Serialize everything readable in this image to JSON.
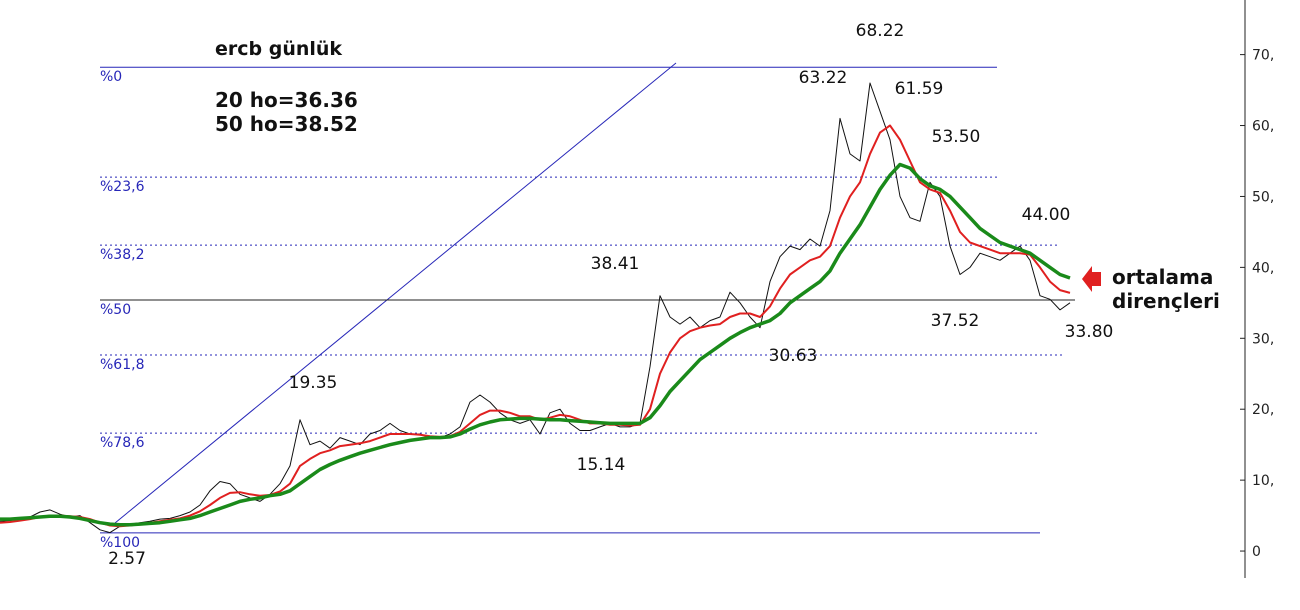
{
  "chart_data": {
    "type": "line",
    "title": "ercb günlük",
    "text_lines": [
      "20 ho=36.36",
      "50 ho=38.52"
    ],
    "note_lines": [
      "ortalama",
      "dirençleri"
    ],
    "ylim": [
      -3.8,
      77.7
    ],
    "yticks": [
      0,
      {
        "value": 10,
        "label": "10,"
      },
      {
        "value": 20,
        "label": "20,"
      },
      {
        "value": 30,
        "label": "30,"
      },
      {
        "value": 40,
        "label": "40,"
      },
      {
        "value": 50,
        "label": "50,"
      },
      {
        "value": 60,
        "label": "60,"
      },
      {
        "value": 70,
        "label": "70,"
      }
    ],
    "fib_levels": [
      {
        "label": "%0",
        "value": 68.22,
        "dashed": false,
        "color": "#2727b8"
      },
      {
        "label": "%23,6",
        "value": 52.73,
        "dashed": true,
        "color": "#2727b8"
      },
      {
        "label": "%38,2",
        "value": 43.14,
        "dashed": true,
        "color": "#2727b8"
      },
      {
        "label": "%50",
        "value": 35.4,
        "dashed": false,
        "color": "#2727b8"
      },
      {
        "label": "%61,8",
        "value": 27.65,
        "dashed": true,
        "color": "#2727b8"
      },
      {
        "label": "%78,6",
        "value": 16.62,
        "dashed": true,
        "color": "#2727b8"
      },
      {
        "label": "%100",
        "value": 2.57,
        "dashed": false,
        "color": "#2727b8"
      }
    ],
    "annotations": [
      "68.22",
      "63.22",
      "61.59",
      "53.50",
      "44.00",
      "38.41",
      "37.52",
      "33.80",
      "30.63",
      "19.35",
      "15.14",
      "2.57"
    ],
    "series": [
      {
        "color": "#111111",
        "width": 1,
        "values": [
          4.2,
          4.3,
          4.5,
          4.8,
          5.5,
          5.8,
          5.2,
          4.8,
          5.0,
          4.0,
          3.0,
          2.6,
          3.5,
          3.8,
          4.0,
          4.2,
          4.5,
          4.6,
          5.0,
          5.5,
          6.5,
          8.5,
          9.8,
          9.5,
          8.0,
          7.5,
          7.0,
          8.0,
          9.5,
          12.0,
          18.5,
          15.0,
          15.5,
          14.5,
          16.0,
          15.5,
          15.0,
          16.5,
          17.0,
          18.0,
          17.0,
          16.5,
          16.5,
          16.0,
          16.0,
          16.5,
          17.5,
          21.0,
          22.0,
          21.0,
          19.5,
          18.5,
          18.0,
          18.5,
          16.5,
          19.5,
          20.0,
          18.0,
          17.0,
          17.0,
          17.5,
          18.0,
          17.5,
          17.5,
          18.0,
          26.0,
          36.0,
          33.0,
          32.0,
          33.0,
          31.5,
          32.5,
          33.0,
          36.5,
          35.0,
          33.0,
          31.5,
          38.0,
          41.5,
          43.0,
          42.5,
          44.0,
          43.0,
          48.0,
          61.0,
          56.0,
          55.0,
          66.0,
          62.0,
          58.0,
          50.0,
          47.0,
          46.5,
          52.0,
          50.0,
          43.0,
          39.0,
          40.0,
          42.0,
          41.5,
          41.0,
          42.0,
          43.0,
          41.0,
          36.0,
          35.5,
          34.0,
          35.0
        ]
      },
      {
        "color": "#e02020",
        "width": 2,
        "values": [
          4,
          4.1,
          4.3,
          4.5,
          4.8,
          5.0,
          5.0,
          4.9,
          4.8,
          4.5,
          4.0,
          3.6,
          3.5,
          3.6,
          3.8,
          4.0,
          4.2,
          4.4,
          4.6,
          5.0,
          5.6,
          6.5,
          7.5,
          8.2,
          8.3,
          8.0,
          7.8,
          7.9,
          8.4,
          9.5,
          12.0,
          13.0,
          13.8,
          14.2,
          14.8,
          15.0,
          15.2,
          15.5,
          16.0,
          16.5,
          16.5,
          16.5,
          16.4,
          16.2,
          16.1,
          16.2,
          16.8,
          18.0,
          19.2,
          19.8,
          19.8,
          19.5,
          19.0,
          19.0,
          18.5,
          18.8,
          19.2,
          19.0,
          18.5,
          18.0,
          18.0,
          17.8,
          17.8,
          17.7,
          17.8,
          20.0,
          25.0,
          28.0,
          30.0,
          31.0,
          31.5,
          31.8,
          32.0,
          33.0,
          33.5,
          33.5,
          33.0,
          34.5,
          37.0,
          39.0,
          40.0,
          41.0,
          41.5,
          43.0,
          47.0,
          50.0,
          52.0,
          56.0,
          59.0,
          60.0,
          58.0,
          55.0,
          52.0,
          51.0,
          50.5,
          48.0,
          45.0,
          43.5,
          43.0,
          42.5,
          42.0,
          42.0,
          42.0,
          41.8,
          40.0,
          38.0,
          36.8,
          36.4
        ]
      },
      {
        "color": "#1a8a1a",
        "width": 3.5,
        "values": [
          4.5,
          4.5,
          4.6,
          4.7,
          4.8,
          4.9,
          4.9,
          4.8,
          4.6,
          4.3,
          4.0,
          3.8,
          3.7,
          3.7,
          3.8,
          3.9,
          4.0,
          4.2,
          4.4,
          4.6,
          5.0,
          5.5,
          6.0,
          6.5,
          7.0,
          7.3,
          7.5,
          7.8,
          8.0,
          8.5,
          9.5,
          10.5,
          11.5,
          12.2,
          12.8,
          13.3,
          13.8,
          14.2,
          14.6,
          15.0,
          15.3,
          15.6,
          15.8,
          16.0,
          16.0,
          16.1,
          16.5,
          17.2,
          17.8,
          18.2,
          18.5,
          18.6,
          18.7,
          18.7,
          18.6,
          18.5,
          18.5,
          18.4,
          18.3,
          18.2,
          18.1,
          18.0,
          18.0,
          18.0,
          18.0,
          18.8,
          20.5,
          22.5,
          24.0,
          25.5,
          27.0,
          28.0,
          29.0,
          30.0,
          30.8,
          31.5,
          32.0,
          32.5,
          33.5,
          35.0,
          36.0,
          37.0,
          38.0,
          39.5,
          42.0,
          44.0,
          46.0,
          48.5,
          51.0,
          53.0,
          54.5,
          54.0,
          52.5,
          51.5,
          51.0,
          50.0,
          48.5,
          47.0,
          45.5,
          44.5,
          43.5,
          43.0,
          42.5,
          42.0,
          41.0,
          40.0,
          39.0,
          38.5
        ]
      }
    ]
  }
}
